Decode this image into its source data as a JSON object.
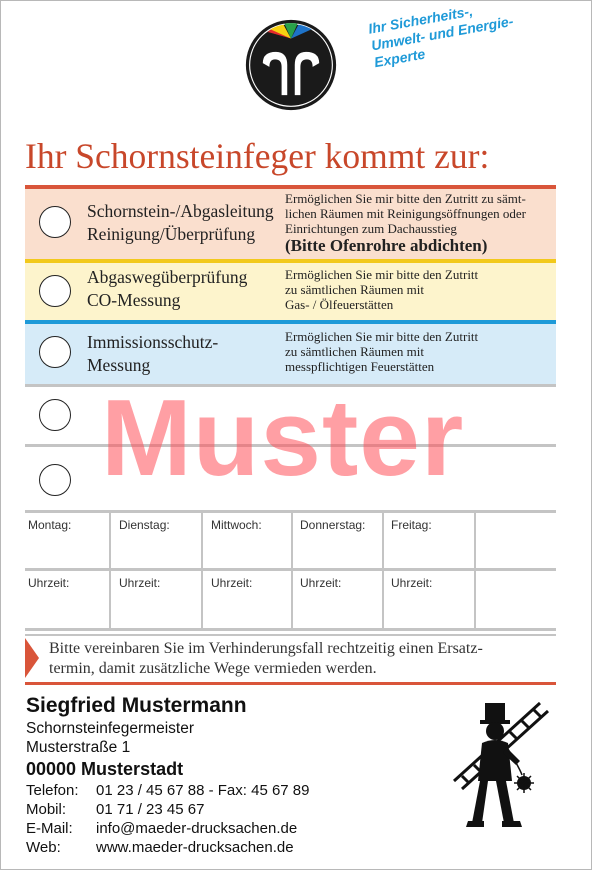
{
  "tagline": [
    "Ihr Sicherheits-,",
    "Umwelt- und Energie-",
    "Experte"
  ],
  "headline": "Ihr Schornsteinfeger kommt zur:",
  "services": [
    {
      "title_lines": [
        "Schornstein-/Abgasleitung",
        "Reinigung/Überprüfung"
      ],
      "desc_lines": [
        "Ermöglichen Sie mir bitte den Zutritt zu sämt-",
        "lichen Räumen mit Reinigungsöffnungen oder",
        "Einrichtungen zum Dachausstieg"
      ],
      "note": "(Bitte Ofenrohre abdichten)",
      "color": "#fadfce",
      "accent": "#d9553a"
    },
    {
      "title_lines": [
        "Abgaswegüberprüfung",
        "CO-Messung"
      ],
      "desc_lines": [
        "Ermöglichen Sie mir bitte den Zutritt",
        "zu sämtlichen Räumen mit",
        "Gas- / Ölfeuerstätten"
      ],
      "color": "#fdf4cc",
      "accent": "#f2c91b"
    },
    {
      "title_lines": [
        "Immissionsschutz-",
        "Messung"
      ],
      "desc_lines": [
        "Ermöglichen Sie mir bitte den Zutritt",
        "zu sämtlichen Räumen mit",
        "messpflichtigen Feuerstätten"
      ],
      "color": "#d6ebf8",
      "accent": "#1e9ad8"
    }
  ],
  "watermark": "Muster",
  "days": [
    "Montag:",
    "Dienstag:",
    "Mittwoch:",
    "Donnerstag:",
    "Freitag:",
    ""
  ],
  "time_label": "Uhrzeit:",
  "notice_lines": [
    "Bitte vereinbaren Sie im Verhinderungsfall rechtzeitig einen Ersatz-",
    "termin, damit zusätzliche Wege vermieden werden."
  ],
  "contact": {
    "name": "Siegfried Mustermann",
    "profession": "Schornsteinfegermeister",
    "street": "Musterstraße 1",
    "city": "00000 Musterstadt",
    "rows": [
      {
        "label": "Telefon:",
        "value": "01 23 / 45 67 88 - Fax:  45 67 89"
      },
      {
        "label": "Mobil:",
        "value": "01 71 / 23 45 67"
      },
      {
        "label": "E-Mail:",
        "value": "info@maeder-drucksachen.de"
      },
      {
        "label": "Web:",
        "value": "www.maeder-drucksachen.de"
      }
    ]
  },
  "icons": {
    "logo": "guild-emblem-icon",
    "mascot": "chimney-sweep-icon"
  },
  "colors": {
    "headline": "#c8472a",
    "tagline": "#1f9ad8",
    "watermark": "#ff505a"
  }
}
